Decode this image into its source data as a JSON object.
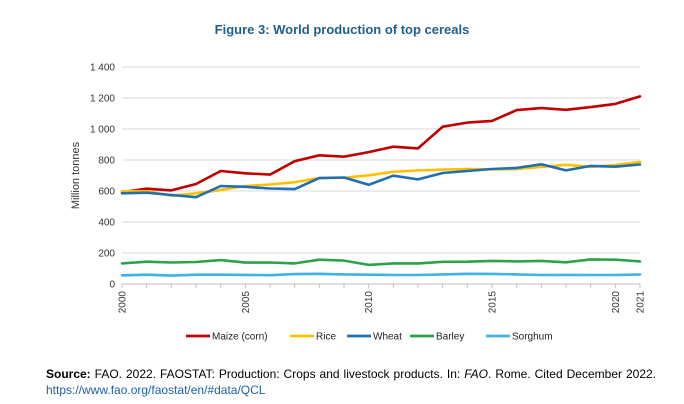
{
  "chart_data": {
    "type": "line",
    "title": "Figure 3: World production of top cereals",
    "ylabel": "Million tonnes",
    "xlabel": "",
    "ylim": [
      0,
      1400
    ],
    "yticks": [
      0,
      200,
      400,
      600,
      800,
      1000,
      1200,
      1400
    ],
    "ytick_labels": [
      "0",
      "200",
      "400",
      "600",
      "800",
      "1 000",
      "1 200",
      "1 400"
    ],
    "xlim": [
      2000,
      2021
    ],
    "xticks": [
      2000,
      2005,
      2010,
      2015,
      2020,
      2021
    ],
    "grid": true,
    "legend_position": "bottom",
    "x": [
      2000,
      2001,
      2002,
      2003,
      2004,
      2005,
      2006,
      2007,
      2008,
      2009,
      2010,
      2011,
      2012,
      2013,
      2014,
      2015,
      2016,
      2017,
      2018,
      2019,
      2020,
      2021
    ],
    "series": [
      {
        "name": "Maize (corn)",
        "color": "#c00000",
        "values": [
          592,
          615,
          604,
          645,
          729,
          714,
          706,
          792,
          830,
          821,
          851,
          886,
          875,
          1015,
          1041,
          1052,
          1122,
          1135,
          1124,
          1141,
          1162,
          1210
        ]
      },
      {
        "name": "Rice",
        "color": "#ffc000",
        "values": [
          599,
          598,
          570,
          585,
          607,
          632,
          642,
          657,
          684,
          685,
          701,
          724,
          733,
          738,
          741,
          740,
          741,
          756,
          769,
          756,
          768,
          787
        ]
      },
      {
        "name": "Wheat",
        "color": "#1f6fb2",
        "values": [
          585,
          589,
          574,
          560,
          632,
          627,
          616,
          612,
          683,
          687,
          640,
          699,
          675,
          716,
          729,
          742,
          749,
          772,
          733,
          762,
          757,
          771
        ]
      },
      {
        "name": "Barley",
        "color": "#2ca24a",
        "values": [
          133,
          144,
          139,
          142,
          154,
          138,
          139,
          133,
          157,
          151,
          123,
          133,
          133,
          143,
          144,
          149,
          146,
          149,
          140,
          159,
          157,
          146
        ]
      },
      {
        "name": "Sorghum",
        "color": "#3fb2e6",
        "values": [
          56,
          60,
          54,
          60,
          60,
          59,
          57,
          64,
          66,
          62,
          60,
          58,
          58,
          62,
          66,
          65,
          62,
          58,
          59,
          58,
          58,
          61
        ]
      }
    ]
  },
  "source": {
    "label": "Source:",
    "text_before": " FAO. 2022. FAOSTAT: Production: Crops and livestock products. In: ",
    "italic": "FAO",
    "text_after": ". Rome. Cited December 2022. ",
    "link": "https://www.fao.org/faostat/en/#data/QCL"
  }
}
